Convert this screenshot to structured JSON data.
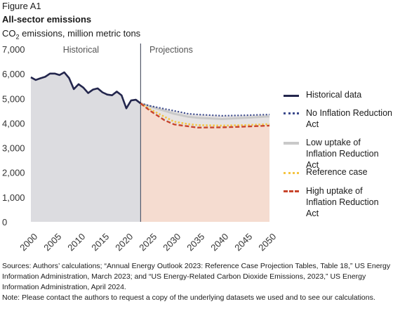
{
  "figure_label": "Figure A1",
  "title": "All-sector emissions",
  "subtitle_prefix": "CO",
  "subtitle_sub": "2",
  "subtitle_suffix": " emissions, million metric tons",
  "region_labels": {
    "historical": "Historical",
    "projections": "Projections"
  },
  "legend": [
    {
      "label": "Historical data",
      "color": "#23264d",
      "style": "solid"
    },
    {
      "label": "No Inflation Reduction Act",
      "color": "#3b4a8c",
      "style": "dotted"
    },
    {
      "label": "Low uptake of Inflation Reduction Act",
      "color": "#c9c9c9",
      "style": "solid"
    },
    {
      "label": "Reference case",
      "color": "#f5c542",
      "style": "dotted"
    },
    {
      "label": "High uptake of Inflation Reduction Act",
      "color": "#c8452c",
      "style": "dashed"
    }
  ],
  "colors": {
    "historical_bg": "#dcdce0",
    "projection_bg": "#f5dcd0",
    "divider": "#555a6b",
    "axis_text": "#333333"
  },
  "sources": "Sources: Authors’ calculations; “Annual Energy Outlook 2023: Reference Case Projection Tables, Table 18,” US Energy Information Administration, March 2023; and “US Energy-Related Carbon Dioxide Emissions, 2023,” US Energy Information Administration, April 2024.",
  "note": "Note: Please contact the authors to request a copy of the underlying datasets we used and to see our calculations.",
  "chart_data": {
    "type": "line",
    "title": "All-sector emissions",
    "ylabel": "CO2 emissions, million metric tons",
    "xlim": [
      2000,
      2050
    ],
    "ylim": [
      0,
      7000
    ],
    "yticks": [
      0,
      1000,
      2000,
      3000,
      4000,
      5000,
      6000,
      7000
    ],
    "ytick_labels": [
      "0",
      "1,000",
      "2,000",
      "3,000",
      "4,000",
      "5,000",
      "6,000",
      "7,000"
    ],
    "xticks": [
      2000,
      2005,
      2010,
      2015,
      2020,
      2025,
      2030,
      2035,
      2040,
      2045,
      2050
    ],
    "projection_start": 2023,
    "series": [
      {
        "name": "Historical data",
        "x": [
          2000,
          2001,
          2002,
          2003,
          2004,
          2005,
          2006,
          2007,
          2008,
          2009,
          2010,
          2011,
          2012,
          2013,
          2014,
          2015,
          2016,
          2017,
          2018,
          2019,
          2020,
          2021,
          2022,
          2023
        ],
        "values": [
          5860,
          5750,
          5820,
          5880,
          6010,
          6010,
          5950,
          6060,
          5830,
          5380,
          5580,
          5440,
          5220,
          5360,
          5410,
          5250,
          5160,
          5130,
          5280,
          5130,
          4600,
          4920,
          4950,
          4800
        ]
      },
      {
        "name": "No Inflation Reduction Act",
        "x": [
          2023,
          2025,
          2028,
          2030,
          2033,
          2035,
          2040,
          2045,
          2050
        ],
        "values": [
          4800,
          4700,
          4580,
          4500,
          4380,
          4350,
          4300,
          4320,
          4350
        ]
      },
      {
        "name": "Low uptake of Inflation Reduction Act",
        "x": [
          2023,
          2025,
          2028,
          2030,
          2033,
          2035,
          2040,
          2045,
          2050
        ],
        "values": [
          4800,
          4680,
          4500,
          4380,
          4260,
          4220,
          4170,
          4220,
          4270
        ]
      },
      {
        "name": "Reference case",
        "x": [
          2023,
          2025,
          2028,
          2030,
          2033,
          2035,
          2040,
          2045,
          2050
        ],
        "values": [
          4800,
          4560,
          4260,
          4060,
          3960,
          3920,
          3900,
          3920,
          3960
        ]
      },
      {
        "name": "High uptake of Inflation Reduction Act",
        "x": [
          2023,
          2025,
          2028,
          2030,
          2033,
          2035,
          2040,
          2045,
          2050
        ],
        "values": [
          4800,
          4500,
          4120,
          3950,
          3870,
          3820,
          3830,
          3860,
          3900
        ]
      }
    ]
  }
}
